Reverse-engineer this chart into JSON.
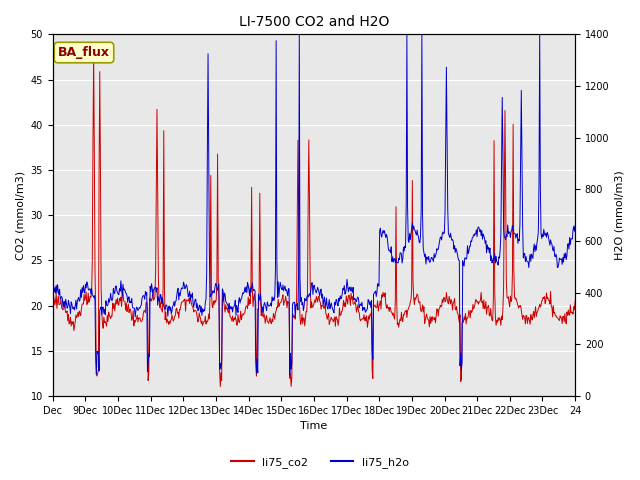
{
  "title": "LI-7500 CO2 and H2O",
  "xlabel": "Time",
  "ylabel_left": "CO2 (mmol/m3)",
  "ylabel_right": "H2O (mmol/m3)",
  "ylim_left": [
    10,
    50
  ],
  "ylim_right": [
    0,
    1400
  ],
  "xtick_labels": [
    "Dec",
    "9Dec",
    "10Dec",
    "11Dec",
    "12Dec",
    "13Dec",
    "14Dec",
    "15Dec",
    "16Dec",
    "17Dec",
    "18Dec",
    "19Dec",
    "20Dec",
    "21Dec",
    "22Dec",
    "23Dec",
    "24"
  ],
  "legend_labels": [
    "li75_co2",
    "li75_h2o"
  ],
  "co2_color": "#cc0000",
  "h2o_color": "#0000cc",
  "background_color": "#e8e8e8",
  "title_fontsize": 10,
  "axis_fontsize": 8,
  "tick_fontsize": 7,
  "legend_fontsize": 8,
  "annotation_text": "BA_flux",
  "annotation_bg": "#ffffcc",
  "annotation_border": "#999900"
}
